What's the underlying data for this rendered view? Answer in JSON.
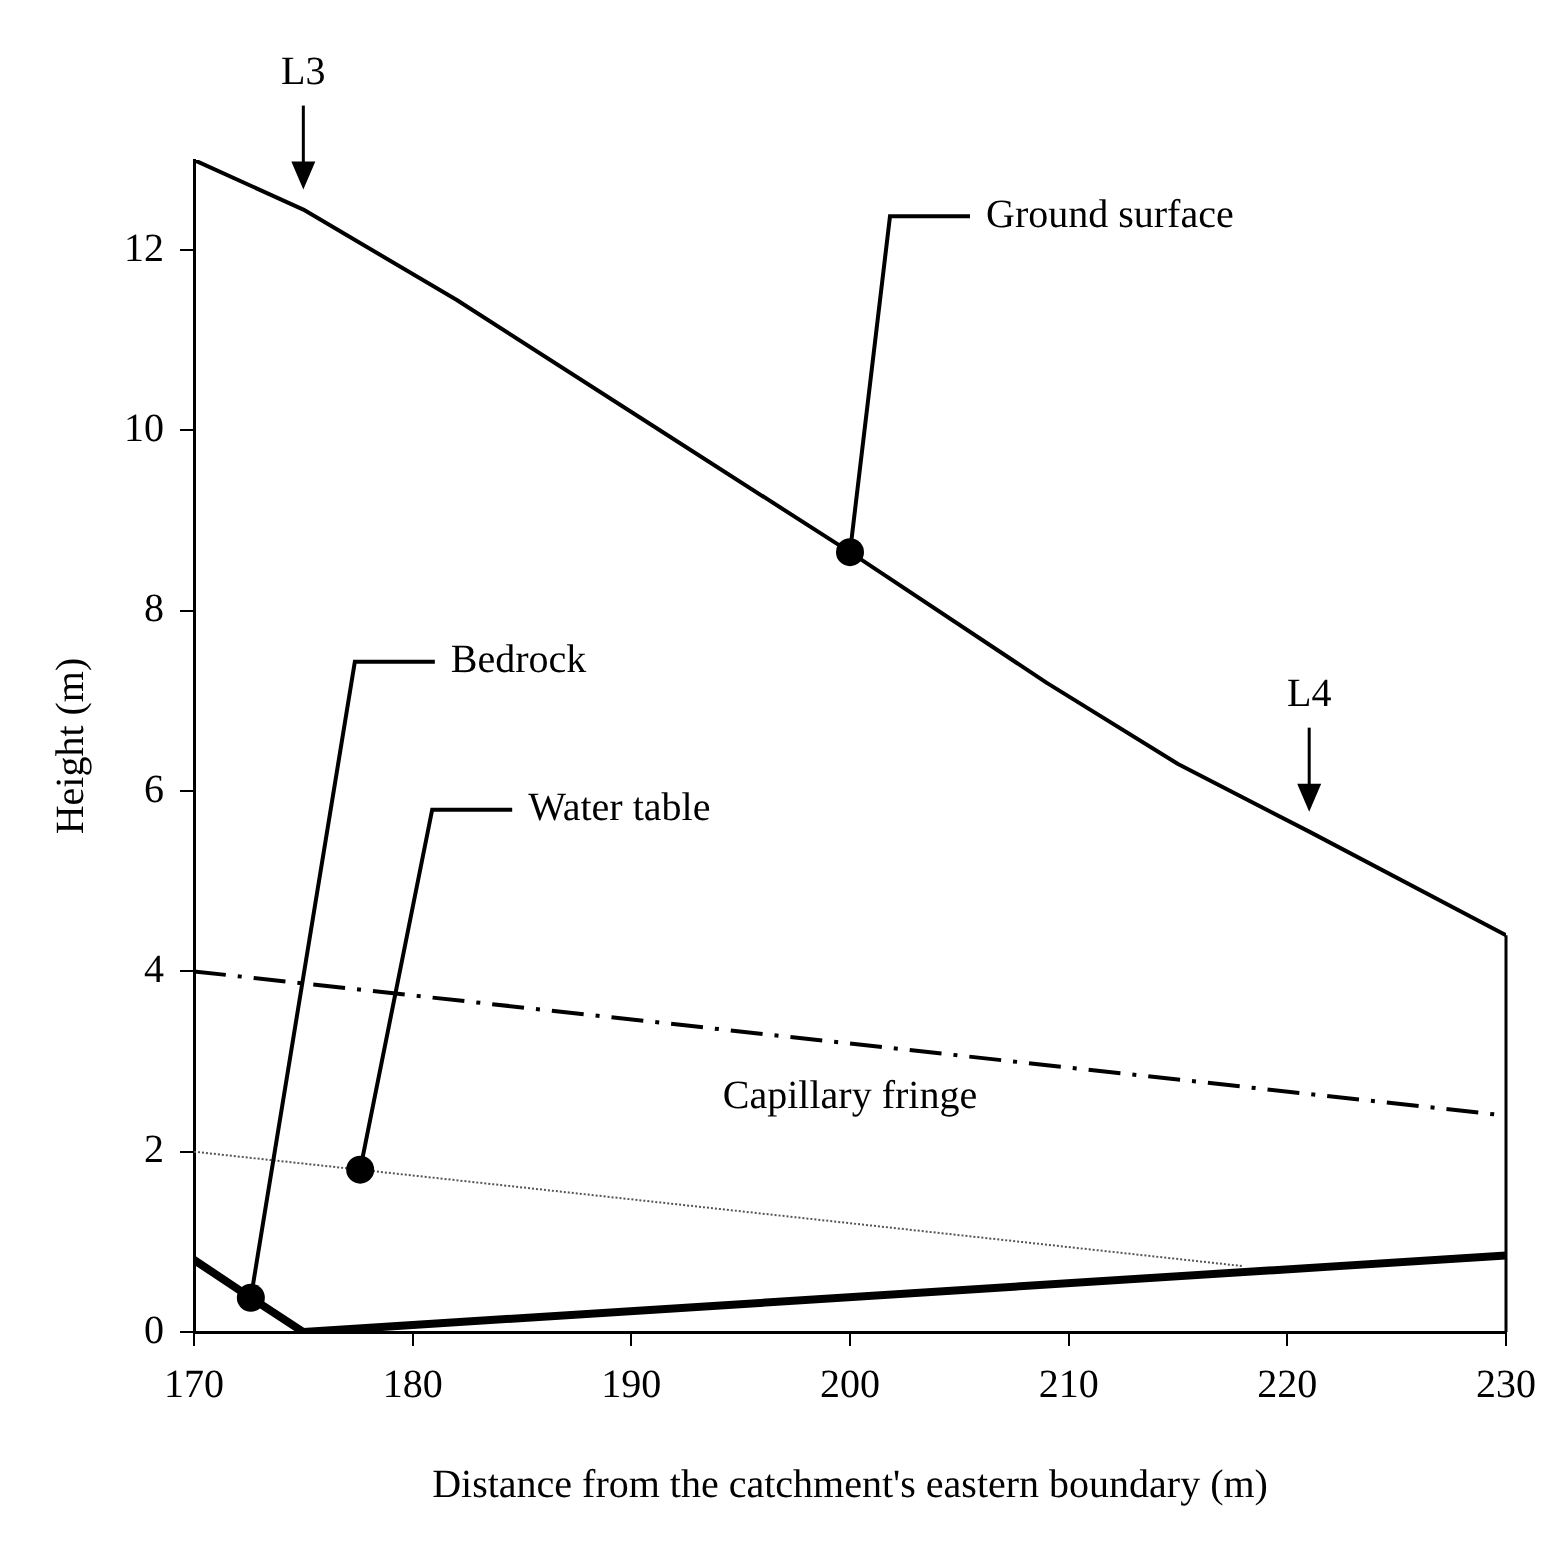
{
  "chart_data": {
    "type": "line",
    "xlabel": "Distance from the catchment's eastern boundary (m)",
    "ylabel": "Height (m)",
    "xlim": [
      170,
      230
    ],
    "xticks": [
      170,
      180,
      190,
      200,
      210,
      220,
      230
    ],
    "ylim": [
      0,
      13
    ],
    "yticks": [
      0,
      2,
      4,
      6,
      8,
      10,
      12
    ],
    "legend": false,
    "marker": "none",
    "series": [
      {
        "name": "Ground surface",
        "color": "#000000",
        "line_style": "solid",
        "x": [
          170,
          175,
          182,
          191,
          200,
          209,
          215,
          221,
          230
        ],
        "values": [
          13.0,
          12.45,
          11.45,
          10.05,
          8.65,
          7.2,
          6.3,
          5.55,
          4.4
        ]
      },
      {
        "name": "Capillary fringe",
        "color": "#000000",
        "line_style": "dashed",
        "x": [
          170,
          230
        ],
        "values": [
          4.0,
          2.4
        ]
      },
      {
        "name": "Water table",
        "color": "#555555",
        "line_style": "dotted",
        "x": [
          170,
          177.6,
          218
        ],
        "values": [
          2.0,
          1.8,
          0.73
        ]
      },
      {
        "name": "Bedrock",
        "color": "#000000",
        "line_style": "solid",
        "x": [
          170,
          172.6,
          175,
          230
        ],
        "values": [
          0.8,
          0.38,
          0,
          0.85
        ]
      }
    ],
    "annotations": [
      {
        "text": "L3",
        "x": 175,
        "y": 12.45
      },
      {
        "text": "L4",
        "x": 221,
        "y": 5.55
      }
    ]
  }
}
